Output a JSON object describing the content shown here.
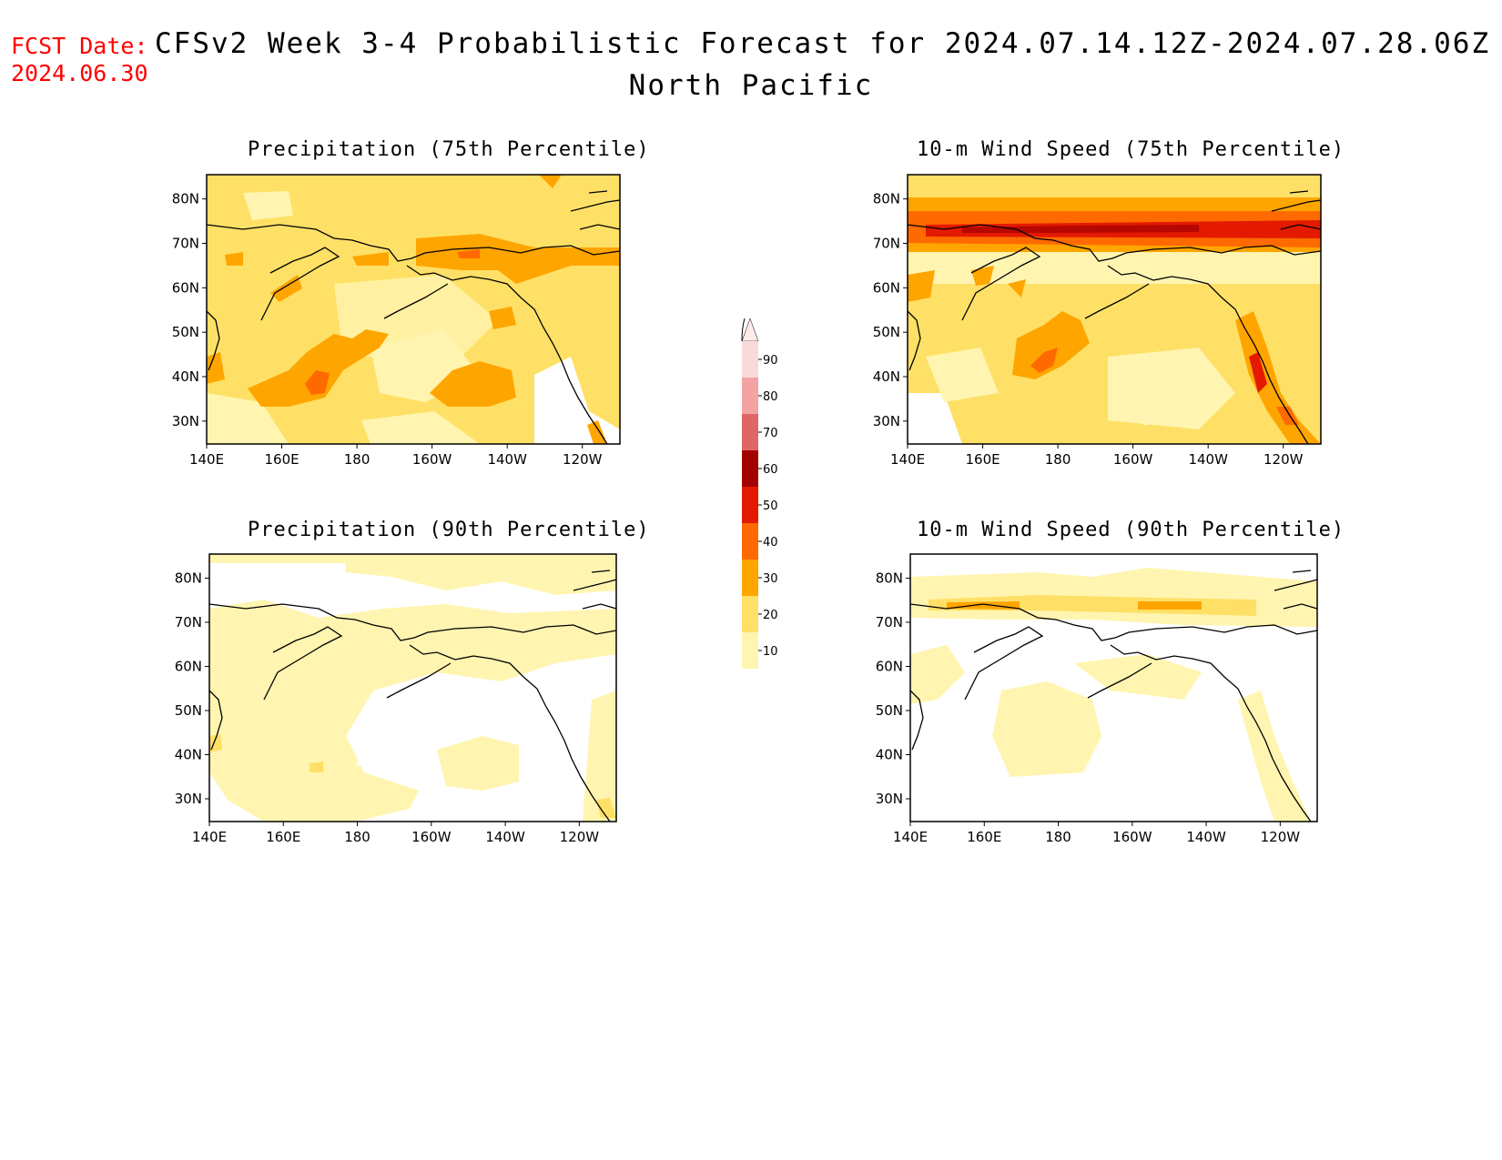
{
  "header": {
    "fcst_label": "FCST Date:",
    "fcst_date": "2024.06.30",
    "title": "CFSv2 Week 3-4 Probabilistic Forecast for 2024.07.14.12Z-2024.07.28.06Z",
    "region": "North Pacific"
  },
  "axes": {
    "lon_labels": [
      "140E",
      "160E",
      "180",
      "160W",
      "140W",
      "120W"
    ],
    "lat_labels": [
      "80N",
      "70N",
      "60N",
      "50N",
      "40N",
      "30N"
    ]
  },
  "panels": [
    {
      "id": "precip75",
      "title": "Precipitation (75th Percentile)"
    },
    {
      "id": "wind75",
      "title": "10-m Wind Speed (75th Percentile)"
    },
    {
      "id": "precip90",
      "title": "Precipitation (90th Percentile)"
    },
    {
      "id": "wind90",
      "title": "10-m Wind Speed (90th Percentile)"
    }
  ],
  "colorbar": {
    "levels": [
      "90",
      "80",
      "70",
      "60",
      "50",
      "40",
      "30",
      "20",
      "10"
    ],
    "colors": [
      "#f9d9d9",
      "#f4a3a3",
      "#e06666",
      "#a30000",
      "#e31a00",
      "#ff6a00",
      "#ffa500",
      "#ffe066",
      "#fff5b0"
    ]
  },
  "palette": {
    "c10": "#fff5b0",
    "c20": "#ffe066",
    "c30": "#ffa500",
    "c40": "#ff6a00",
    "c50": "#e31a00",
    "c60": "#a30000",
    "c70": "#e06666",
    "fcst_red": "#ff0000"
  }
}
